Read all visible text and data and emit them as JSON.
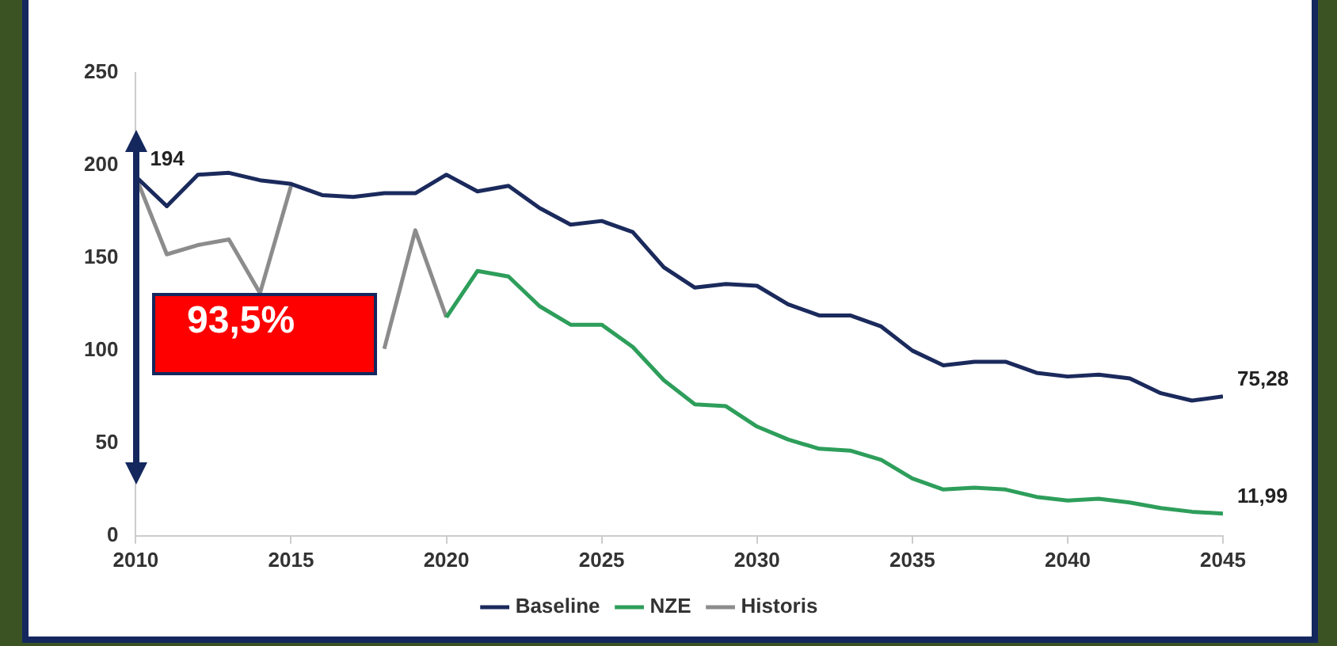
{
  "chart_data": {
    "type": "line",
    "x": [
      2010,
      2011,
      2012,
      2013,
      2014,
      2015,
      2016,
      2017,
      2018,
      2019,
      2020,
      2021,
      2022,
      2023,
      2024,
      2025,
      2026,
      2027,
      2028,
      2029,
      2030,
      2031,
      2032,
      2033,
      2034,
      2035,
      2036,
      2037,
      2038,
      2039,
      2040,
      2041,
      2042,
      2043,
      2044,
      2045
    ],
    "series": [
      {
        "name": "Baseline",
        "color": "#1b2a5c",
        "values": [
          194,
          178,
          195,
          196,
          192,
          190,
          184,
          183,
          185,
          185,
          195,
          186,
          189,
          177,
          168,
          170,
          164,
          145,
          134,
          136,
          135,
          125,
          119,
          119,
          113,
          100,
          92,
          94,
          94,
          88,
          86,
          87,
          85,
          77,
          73,
          75.28
        ],
        "value_labels": [
          "194",
          null,
          null,
          null,
          null,
          null,
          null,
          null,
          null,
          null,
          null,
          null,
          null,
          null,
          null,
          null,
          null,
          null,
          null,
          null,
          null,
          null,
          null,
          null,
          null,
          null,
          null,
          null,
          null,
          null,
          null,
          null,
          null,
          null,
          null,
          "75,28"
        ]
      },
      {
        "name": "NZE",
        "color": "#2e9e5b",
        "values": [
          null,
          null,
          null,
          null,
          null,
          null,
          null,
          null,
          null,
          null,
          118,
          143,
          140,
          124,
          114,
          114,
          102,
          84,
          71,
          70,
          59,
          52,
          47,
          46,
          41,
          31,
          25,
          26,
          25,
          21,
          19,
          20,
          18,
          15,
          13,
          11.99
        ],
        "value_labels": [
          null,
          null,
          null,
          null,
          null,
          null,
          null,
          null,
          null,
          null,
          null,
          null,
          null,
          null,
          null,
          null,
          null,
          null,
          null,
          null,
          null,
          null,
          null,
          null,
          null,
          null,
          null,
          null,
          null,
          null,
          null,
          null,
          null,
          null,
          null,
          "11,99"
        ]
      },
      {
        "name": "Historis",
        "color": "#8c8c8c",
        "values": [
          194,
          152,
          157,
          160,
          131,
          189,
          null,
          null,
          101,
          165,
          118,
          null,
          null,
          null,
          null,
          null,
          null,
          null,
          null,
          null,
          null,
          null,
          null,
          null,
          null,
          null,
          null,
          null,
          null,
          null,
          null,
          null,
          null,
          null,
          null,
          null
        ]
      }
    ],
    "xlim": [
      2010,
      2045
    ],
    "xticks": [
      2010,
      2015,
      2020,
      2025,
      2030,
      2035,
      2040,
      2045
    ],
    "ylim": [
      0,
      250
    ],
    "yticks": [
      0,
      50,
      100,
      150,
      200,
      250
    ],
    "grid": false,
    "legend": "bottom",
    "marker": "none",
    "line_style": "solid",
    "annotations": [
      "93,5%"
    ]
  }
}
